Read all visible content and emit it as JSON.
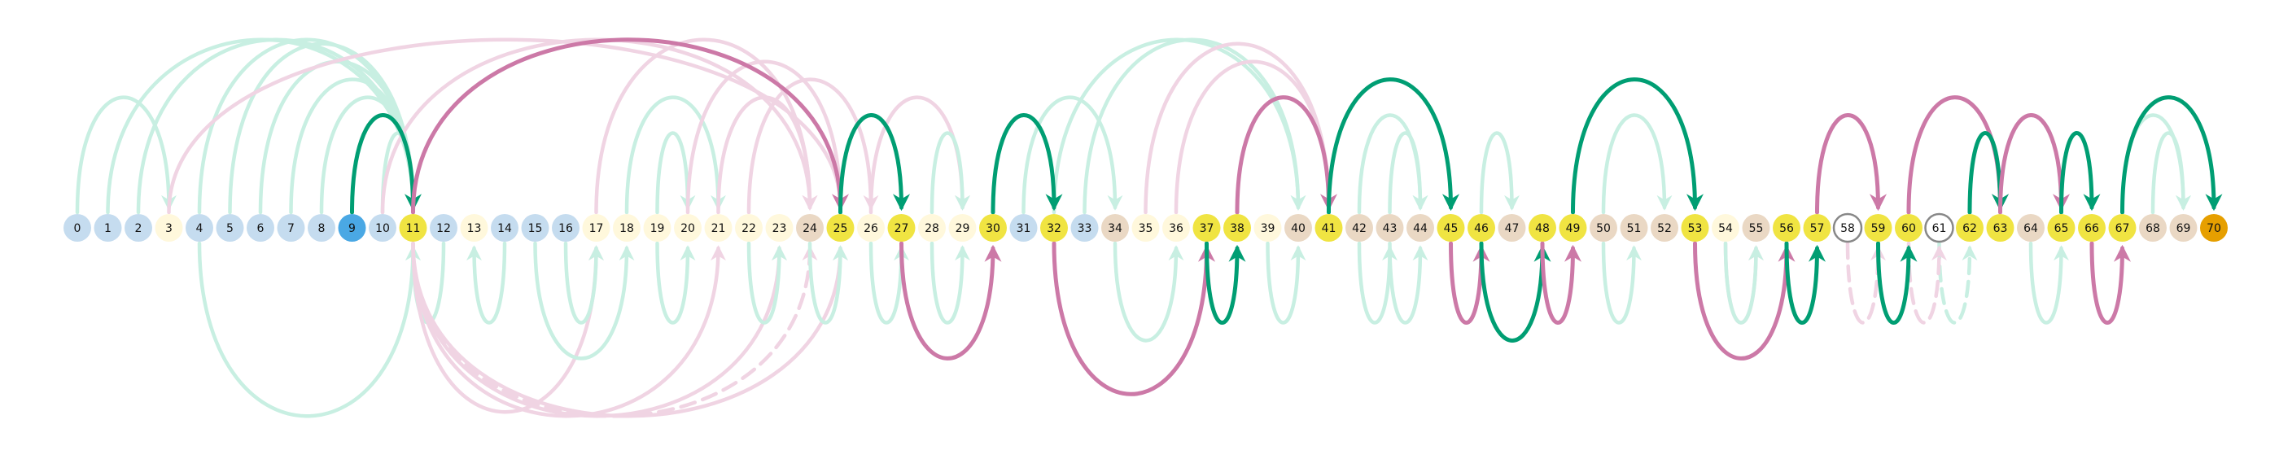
{
  "diagram": {
    "node_labels": [
      "0",
      "1",
      "2",
      "3",
      "4",
      "5",
      "6",
      "7",
      "8",
      "9",
      "10",
      "11",
      "12",
      "13",
      "14",
      "15",
      "16",
      "17",
      "18",
      "19",
      "20",
      "21",
      "22",
      "23",
      "24",
      "25",
      "26",
      "27",
      "28",
      "29",
      "30",
      "31",
      "32",
      "33",
      "34",
      "35",
      "36",
      "37",
      "38",
      "39",
      "40",
      "41",
      "42",
      "43",
      "44",
      "45",
      "46",
      "47",
      "48",
      "49",
      "50",
      "51",
      "52",
      "53",
      "54",
      "55",
      "56",
      "57",
      "58",
      "59",
      "60",
      "61",
      "62",
      "63",
      "64",
      "65",
      "66",
      "67",
      "68",
      "69",
      "70"
    ],
    "node_kinds": [
      "blue",
      "blue",
      "blue",
      "cream",
      "blue",
      "blue",
      "blue",
      "blue",
      "blue",
      "start",
      "blue",
      "yellow",
      "blue",
      "cream",
      "blue",
      "blue",
      "blue",
      "cream",
      "cream",
      "cream",
      "cream",
      "cream",
      "cream",
      "cream",
      "tan",
      "yellow",
      "cream",
      "yellow",
      "cream",
      "cream",
      "yellow",
      "blue",
      "yellow",
      "blue",
      "tan",
      "cream",
      "cream",
      "yellow",
      "yellow",
      "cream",
      "tan",
      "yellow",
      "tan",
      "tan",
      "tan",
      "yellow",
      "yellow",
      "tan",
      "yellow",
      "yellow",
      "tan",
      "tan",
      "tan",
      "yellow",
      "cream",
      "tan",
      "yellow",
      "yellow",
      "ring",
      "yellow",
      "yellow",
      "ring",
      "yellow",
      "yellow",
      "tan",
      "yellow",
      "yellow",
      "yellow",
      "tan",
      "tan",
      "end"
    ],
    "colors": {
      "blue": "#c5dcef",
      "start": "#4aa8e4",
      "yellow": "#f0e442",
      "cream": "#fff8dc",
      "tan": "#ead8c4",
      "ring": "#ffffff",
      "end": "#e69f00",
      "green_strong": "#009e73",
      "green_light": "#c8efe2",
      "pink_strong": "#cc79a7",
      "pink_light": "#f0d4e3"
    },
    "arcs": [
      {
        "from": 0,
        "to": 3,
        "side": "up",
        "style": "faint",
        "tone": "green"
      },
      {
        "from": 1,
        "to": 11,
        "side": "up",
        "style": "faint",
        "tone": "green"
      },
      {
        "from": 2,
        "to": 11,
        "side": "up",
        "style": "faint",
        "tone": "green"
      },
      {
        "from": 4,
        "to": 11,
        "side": "up",
        "style": "faint",
        "tone": "green"
      },
      {
        "from": 5,
        "to": 11,
        "side": "up",
        "style": "faint",
        "tone": "green"
      },
      {
        "from": 6,
        "to": 11,
        "side": "up",
        "style": "faint",
        "tone": "green"
      },
      {
        "from": 7,
        "to": 11,
        "side": "up",
        "style": "faint",
        "tone": "green"
      },
      {
        "from": 8,
        "to": 11,
        "side": "up",
        "style": "faint",
        "tone": "green"
      },
      {
        "from": 10,
        "to": 11,
        "side": "up",
        "style": "faint",
        "tone": "green"
      },
      {
        "from": 3,
        "to": 25,
        "side": "up",
        "style": "faint",
        "tone": "pink"
      },
      {
        "from": 10,
        "to": 24,
        "side": "up",
        "style": "faint",
        "tone": "pink"
      },
      {
        "from": 17,
        "to": 24,
        "side": "up",
        "style": "faint",
        "tone": "pink"
      },
      {
        "from": 18,
        "to": 21,
        "side": "up",
        "style": "faint",
        "tone": "green"
      },
      {
        "from": 19,
        "to": 20,
        "side": "up",
        "style": "faint",
        "tone": "green"
      },
      {
        "from": 20,
        "to": 25,
        "side": "up",
        "style": "faint",
        "tone": "pink"
      },
      {
        "from": 21,
        "to": 24,
        "side": "up",
        "style": "faint",
        "tone": "pink"
      },
      {
        "from": 22,
        "to": 26,
        "side": "up",
        "style": "faint",
        "tone": "pink"
      },
      {
        "from": 26,
        "to": 29,
        "side": "up",
        "style": "faint",
        "tone": "pink"
      },
      {
        "from": 28,
        "to": 29,
        "side": "up",
        "style": "faint",
        "tone": "green"
      },
      {
        "from": 31,
        "to": 34,
        "side": "up",
        "style": "faint",
        "tone": "green"
      },
      {
        "from": 32,
        "to": 40,
        "side": "up",
        "style": "faint",
        "tone": "green"
      },
      {
        "from": 33,
        "to": 40,
        "side": "up",
        "style": "faint",
        "tone": "green"
      },
      {
        "from": 35,
        "to": 41,
        "side": "up",
        "style": "faint",
        "tone": "pink"
      },
      {
        "from": 36,
        "to": 41,
        "side": "up",
        "style": "faint",
        "tone": "pink"
      },
      {
        "from": 42,
        "to": 44,
        "side": "up",
        "style": "faint",
        "tone": "green"
      },
      {
        "from": 43,
        "to": 44,
        "side": "up",
        "style": "faint",
        "tone": "green"
      },
      {
        "from": 46,
        "to": 47,
        "side": "up",
        "style": "faint",
        "tone": "green"
      },
      {
        "from": 50,
        "to": 52,
        "side": "up",
        "style": "faint",
        "tone": "green"
      },
      {
        "from": 67,
        "to": 69,
        "side": "up",
        "style": "faint",
        "tone": "green"
      },
      {
        "from": 68,
        "to": 69,
        "side": "up",
        "style": "faint",
        "tone": "green"
      },
      {
        "from": 4,
        "to": 11,
        "side": "down",
        "style": "faint",
        "tone": "green"
      },
      {
        "from": 12,
        "to": 11,
        "side": "down",
        "style": "faint",
        "tone": "green"
      },
      {
        "from": 14,
        "to": 13,
        "side": "down",
        "style": "faint",
        "tone": "green"
      },
      {
        "from": 11,
        "to": 17,
        "side": "down",
        "style": "faint",
        "tone": "pink"
      },
      {
        "from": 11,
        "to": 21,
        "side": "down",
        "style": "faint",
        "tone": "pink"
      },
      {
        "from": 11,
        "to": 23,
        "side": "down",
        "style": "faint",
        "tone": "pink"
      },
      {
        "from": 11,
        "to": 25,
        "side": "down",
        "style": "faint",
        "tone": "pink"
      },
      {
        "from": 11,
        "to": 24,
        "side": "down",
        "style": "dashed",
        "tone": "pink"
      },
      {
        "from": 16,
        "to": 17,
        "side": "down",
        "style": "faint",
        "tone": "green"
      },
      {
        "from": 15,
        "to": 18,
        "side": "down",
        "style": "faint",
        "tone": "green"
      },
      {
        "from": 19,
        "to": 20,
        "side": "down",
        "style": "faint",
        "tone": "green"
      },
      {
        "from": 22,
        "to": 23,
        "side": "down",
        "style": "faint",
        "tone": "green"
      },
      {
        "from": 24,
        "to": 25,
        "side": "down",
        "style": "faint",
        "tone": "green"
      },
      {
        "from": 26,
        "to": 27,
        "side": "down",
        "style": "faint",
        "tone": "green"
      },
      {
        "from": 28,
        "to": 29,
        "side": "down",
        "style": "faint",
        "tone": "green"
      },
      {
        "from": 34,
        "to": 36,
        "side": "down",
        "style": "faint",
        "tone": "green"
      },
      {
        "from": 39,
        "to": 40,
        "side": "down",
        "style": "faint",
        "tone": "green"
      },
      {
        "from": 42,
        "to": 43,
        "side": "down",
        "style": "faint",
        "tone": "green"
      },
      {
        "from": 43,
        "to": 44,
        "side": "down",
        "style": "faint",
        "tone": "green"
      },
      {
        "from": 50,
        "to": 51,
        "side": "down",
        "style": "faint",
        "tone": "green"
      },
      {
        "from": 54,
        "to": 55,
        "side": "down",
        "style": "faint",
        "tone": "pink"
      },
      {
        "from": 54,
        "to": 55,
        "side": "down",
        "style": "faint",
        "tone": "green"
      },
      {
        "from": 58,
        "to": 59,
        "side": "down",
        "style": "dashed",
        "tone": "pink"
      },
      {
        "from": 61,
        "to": 62,
        "side": "down",
        "style": "dashed",
        "tone": "green"
      },
      {
        "from": 60,
        "to": 61,
        "side": "down",
        "style": "dashed",
        "tone": "pink"
      },
      {
        "from": 64,
        "to": 65,
        "side": "down",
        "style": "faint",
        "tone": "green"
      },
      {
        "from": 9,
        "to": 11,
        "side": "up",
        "style": "strong",
        "tone": "green"
      },
      {
        "from": 11,
        "to": 25,
        "side": "up",
        "style": "strong",
        "tone": "pink"
      },
      {
        "from": 25,
        "to": 27,
        "side": "up",
        "style": "strong",
        "tone": "green"
      },
      {
        "from": 30,
        "to": 32,
        "side": "up",
        "style": "strong",
        "tone": "green"
      },
      {
        "from": 38,
        "to": 41,
        "side": "up",
        "style": "strong",
        "tone": "pink"
      },
      {
        "from": 41,
        "to": 45,
        "side": "up",
        "style": "strong",
        "tone": "green"
      },
      {
        "from": 49,
        "to": 53,
        "side": "up",
        "style": "strong",
        "tone": "green"
      },
      {
        "from": 57,
        "to": 59,
        "side": "up",
        "style": "strong",
        "tone": "pink"
      },
      {
        "from": 60,
        "to": 63,
        "side": "up",
        "style": "strong",
        "tone": "pink"
      },
      {
        "from": 62,
        "to": 63,
        "side": "up",
        "style": "strong",
        "tone": "green"
      },
      {
        "from": 63,
        "to": 65,
        "side": "up",
        "style": "strong",
        "tone": "pink"
      },
      {
        "from": 65,
        "to": 66,
        "side": "up",
        "style": "strong",
        "tone": "green"
      },
      {
        "from": 67,
        "to": 70,
        "side": "up",
        "style": "strong",
        "tone": "green"
      },
      {
        "from": 27,
        "to": 30,
        "side": "down",
        "style": "strong",
        "tone": "pink"
      },
      {
        "from": 32,
        "to": 37,
        "side": "down",
        "style": "strong",
        "tone": "pink"
      },
      {
        "from": 37,
        "to": 38,
        "side": "down",
        "style": "strong",
        "tone": "green"
      },
      {
        "from": 45,
        "to": 46,
        "side": "down",
        "style": "strong",
        "tone": "pink"
      },
      {
        "from": 46,
        "to": 48,
        "side": "down",
        "style": "strong",
        "tone": "green"
      },
      {
        "from": 48,
        "to": 49,
        "side": "down",
        "style": "strong",
        "tone": "pink"
      },
      {
        "from": 53,
        "to": 56,
        "side": "down",
        "style": "strong",
        "tone": "pink"
      },
      {
        "from": 56,
        "to": 57,
        "side": "down",
        "style": "strong",
        "tone": "green"
      },
      {
        "from": 59,
        "to": 60,
        "side": "down",
        "style": "strong",
        "tone": "green"
      },
      {
        "from": 66,
        "to": 67,
        "side": "down",
        "style": "strong",
        "tone": "pink"
      }
    ]
  }
}
